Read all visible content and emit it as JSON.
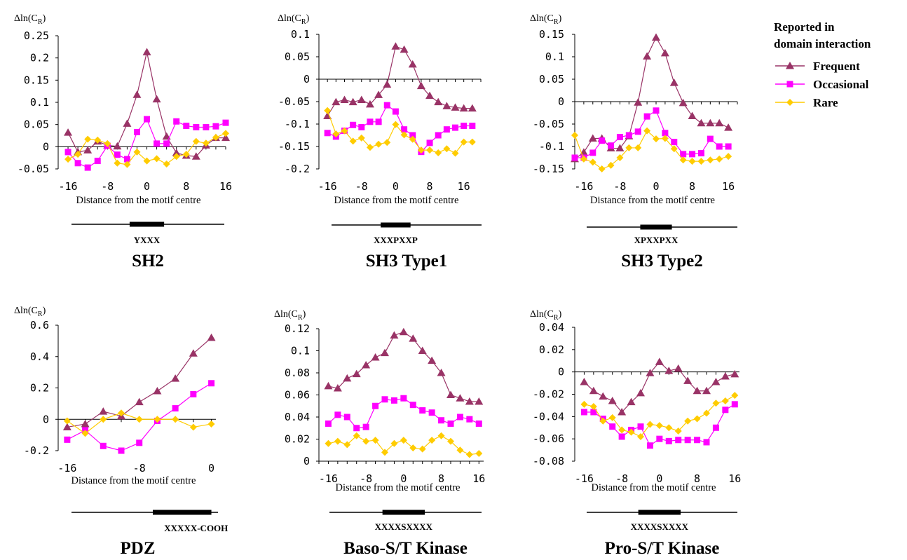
{
  "legend": {
    "title_line1": "Reported in",
    "title_line2": "domain interaction",
    "entries": [
      {
        "label": "Frequent",
        "color": "#993366",
        "marker": "triangle"
      },
      {
        "label": "Occasional",
        "color": "#ff00ff",
        "marker": "square"
      },
      {
        "label": "Rare",
        "color": "#ffcc00",
        "marker": "diamond"
      }
    ]
  },
  "chart_data": [
    {
      "type": "line",
      "title": "SH2",
      "motif": "YXXX",
      "ylabel_prefix": "Δln(C",
      "ylabel_sub": "R",
      "ylabel_suffix": ")",
      "xlabel": "Distance from the motif centre",
      "ylim": [
        -0.05,
        0.25
      ],
      "yticks": [
        "0.25",
        "0.2",
        "0.15",
        "0.1",
        "0.05",
        "0",
        "-0.05"
      ],
      "xlim": [
        -18,
        16
      ],
      "xticks": [
        -16,
        -8,
        0,
        8,
        16
      ],
      "zero_axis": 0,
      "x": [
        -16,
        -14,
        -12,
        -10,
        -8,
        -6,
        -4,
        -2,
        0,
        2,
        4,
        6,
        8,
        10,
        12,
        14,
        16
      ],
      "series": [
        {
          "name": "Frequent",
          "values": [
            0.032,
            -0.012,
            -0.008,
            0.012,
            0.003,
            0.001,
            0.052,
            0.117,
            0.213,
            0.107,
            0.023,
            -0.014,
            -0.02,
            -0.022,
            0.003,
            0.02,
            0.02
          ]
        },
        {
          "name": "Occasional",
          "values": [
            -0.012,
            -0.037,
            -0.047,
            -0.032,
            0.002,
            -0.018,
            -0.028,
            0.033,
            0.062,
            0.007,
            0.007,
            0.057,
            0.047,
            0.044,
            0.044,
            0.046,
            0.054
          ]
        },
        {
          "name": "Rare",
          "values": [
            -0.028,
            -0.017,
            0.017,
            0.015,
            0.007,
            -0.037,
            -0.04,
            -0.012,
            -0.032,
            -0.027,
            -0.039,
            -0.022,
            -0.017,
            0.012,
            0.008,
            0.021,
            0.03
          ]
        }
      ],
      "motif_bar": [
        -3.5,
        3.5
      ]
    },
    {
      "type": "line",
      "title": "SH3  Type1",
      "motif": "XXXPXXP",
      "ylabel_prefix": "Δln(C",
      "ylabel_sub": "R",
      "ylabel_suffix": ")",
      "xlabel": "Distance from the motif centre",
      "ylim": [
        -0.2,
        0.1
      ],
      "yticks": [
        "0.1",
        "0.05",
        "0",
        "-0.05",
        "-0.1",
        "-0.15",
        "-0.2"
      ],
      "xlim": [
        -18,
        20
      ],
      "xticks": [
        -16,
        -8,
        0,
        8,
        16
      ],
      "zero_axis": 0,
      "x": [
        -16,
        -14,
        -12,
        -10,
        -8,
        -6,
        -4,
        -2,
        0,
        2,
        4,
        6,
        8,
        10,
        12,
        14,
        16,
        18
      ],
      "series": [
        {
          "name": "Frequent",
          "values": [
            -0.082,
            -0.051,
            -0.046,
            -0.051,
            -0.046,
            -0.056,
            -0.035,
            -0.012,
            0.073,
            0.066,
            0.033,
            -0.015,
            -0.037,
            -0.051,
            -0.06,
            -0.063,
            -0.065,
            -0.065
          ]
        },
        {
          "name": "Occasional",
          "values": [
            -0.12,
            -0.128,
            -0.115,
            -0.102,
            -0.107,
            -0.095,
            -0.095,
            -0.058,
            -0.072,
            -0.112,
            -0.125,
            -0.162,
            -0.142,
            -0.125,
            -0.112,
            -0.108,
            -0.104,
            -0.104
          ]
        },
        {
          "name": "Rare",
          "values": [
            -0.07,
            -0.122,
            -0.115,
            -0.138,
            -0.131,
            -0.152,
            -0.145,
            -0.141,
            -0.101,
            -0.124,
            -0.134,
            -0.158,
            -0.158,
            -0.164,
            -0.155,
            -0.165,
            -0.14,
            -0.14
          ]
        }
      ],
      "motif_bar": [
        -3.5,
        3.5
      ]
    },
    {
      "type": "line",
      "title": "SH3  Type2",
      "motif": "XPXXPXX",
      "ylabel_prefix": "Δln(C",
      "ylabel_sub": "R",
      "ylabel_suffix": ")",
      "xlabel": "Distance from the motif centre",
      "ylim": [
        -0.15,
        0.15
      ],
      "yticks": [
        "0.15",
        "0.1",
        "0.05",
        "0",
        "-0.05",
        "-0.1",
        "-0.15"
      ],
      "xlim": [
        -18,
        18
      ],
      "xticks": [
        -16,
        -8,
        0,
        8,
        16
      ],
      "zero_axis": 0,
      "x": [
        -18,
        -16,
        -14,
        -12,
        -10,
        -8,
        -6,
        -4,
        -2,
        0,
        2,
        4,
        6,
        8,
        10,
        12,
        14,
        16
      ],
      "series": [
        {
          "name": "Frequent",
          "values": [
            -0.128,
            -0.113,
            -0.082,
            -0.082,
            -0.104,
            -0.104,
            -0.077,
            -0.002,
            0.101,
            0.143,
            0.108,
            0.042,
            -0.003,
            -0.032,
            -0.048,
            -0.048,
            -0.048,
            -0.058
          ]
        },
        {
          "name": "Occasional",
          "values": [
            -0.125,
            -0.125,
            -0.114,
            -0.087,
            -0.098,
            -0.079,
            -0.075,
            -0.067,
            -0.033,
            -0.02,
            -0.07,
            -0.09,
            -0.117,
            -0.117,
            -0.115,
            -0.083,
            -0.1,
            -0.1
          ]
        },
        {
          "name": "Rare",
          "values": [
            -0.075,
            -0.128,
            -0.135,
            -0.15,
            -0.142,
            -0.125,
            -0.103,
            -0.103,
            -0.065,
            -0.083,
            -0.082,
            -0.105,
            -0.13,
            -0.133,
            -0.133,
            -0.13,
            -0.128,
            -0.122
          ]
        }
      ],
      "motif_bar": [
        -3.5,
        3.5
      ]
    },
    {
      "type": "line",
      "title": "PDZ",
      "motif": "XXXXX-COOH",
      "ylabel_prefix": "Δln(C",
      "ylabel_sub": "R",
      "ylabel_suffix": ")",
      "xlabel": "Distance from the motif centre",
      "ylim": [
        -0.2,
        0.6
      ],
      "yticks": [
        "0.6",
        "0.4",
        "0.2",
        "0",
        "-0.2"
      ],
      "xlim": [
        -17,
        0.5
      ],
      "xticks": [
        -16,
        -8,
        0
      ],
      "zero_axis": 0,
      "x": [
        -16,
        -14,
        -12,
        -10,
        -8,
        -6,
        -4,
        -2,
        0
      ],
      "series": [
        {
          "name": "Frequent",
          "values": [
            -0.05,
            -0.03,
            0.05,
            0.02,
            0.11,
            0.18,
            0.26,
            0.42,
            0.52
          ]
        },
        {
          "name": "Occasional",
          "values": [
            -0.13,
            -0.07,
            -0.17,
            -0.2,
            -0.15,
            -0.01,
            0.07,
            0.16,
            0.23
          ]
        },
        {
          "name": "Rare",
          "values": [
            -0.01,
            -0.09,
            0.0,
            0.04,
            0.0,
            0.0,
            0.0,
            -0.05,
            -0.03
          ]
        }
      ],
      "motif_bar": [
        -6.5,
        0
      ]
    },
    {
      "type": "line",
      "title": "Baso-S/T Kinase",
      "motif": "XXXXSXXXX",
      "ylabel_prefix": "Δln(C",
      "ylabel_sub": "R",
      "ylabel_suffix": ")",
      "xlabel": "Distance from the motif centre",
      "ylim": [
        0,
        0.12
      ],
      "yticks": [
        "0.12",
        "0.1",
        "0.08",
        "0.06",
        "0.04",
        "0.02",
        "0"
      ],
      "xlim": [
        -18,
        17
      ],
      "xticks": [
        -16,
        -8,
        0,
        8,
        16
      ],
      "zero_axis": null,
      "x": [
        -16,
        -14,
        -12,
        -10,
        -8,
        -6,
        -4,
        -2,
        0,
        2,
        4,
        6,
        8,
        10,
        12,
        14,
        16
      ],
      "series": [
        {
          "name": "Frequent",
          "values": [
            0.068,
            0.066,
            0.075,
            0.079,
            0.087,
            0.094,
            0.098,
            0.114,
            0.117,
            0.111,
            0.1,
            0.091,
            0.08,
            0.06,
            0.057,
            0.054,
            0.054
          ]
        },
        {
          "name": "Occasional",
          "values": [
            0.034,
            0.042,
            0.04,
            0.03,
            0.031,
            0.05,
            0.056,
            0.055,
            0.057,
            0.051,
            0.046,
            0.044,
            0.037,
            0.034,
            0.04,
            0.038,
            0.034
          ]
        },
        {
          "name": "Rare",
          "values": [
            0.016,
            0.018,
            0.015,
            0.023,
            0.018,
            0.019,
            0.008,
            0.016,
            0.019,
            0.012,
            0.011,
            0.019,
            0.023,
            0.018,
            0.01,
            0.006,
            0.007
          ]
        }
      ],
      "motif_bar": [
        -4.5,
        4.5
      ]
    },
    {
      "type": "line",
      "title": "Pro-S/T Kinase",
      "motif": "XXXXSXXXX",
      "ylabel_prefix": "Δln(C",
      "ylabel_sub": "R",
      "ylabel_suffix": ")",
      "xlabel": "Distance from the motif centre",
      "ylim": [
        -0.08,
        0.04
      ],
      "yticks": [
        "0.04",
        "0.02",
        "0",
        "-0.02",
        "-0.04",
        "-0.06",
        "-0.08"
      ],
      "xlim": [
        -18,
        17
      ],
      "xticks": [
        -16,
        -8,
        0,
        8,
        16
      ],
      "zero_axis": 0,
      "x": [
        -16,
        -14,
        -12,
        -10,
        -8,
        -6,
        -4,
        -2,
        0,
        2,
        4,
        6,
        8,
        10,
        12,
        14,
        16
      ],
      "series": [
        {
          "name": "Frequent",
          "values": [
            -0.009,
            -0.017,
            -0.022,
            -0.026,
            -0.036,
            -0.027,
            -0.019,
            -0.001,
            0.009,
            0.001,
            0.003,
            -0.008,
            -0.017,
            -0.017,
            -0.009,
            -0.004,
            -0.002
          ]
        },
        {
          "name": "Occasional",
          "values": [
            -0.036,
            -0.036,
            -0.042,
            -0.049,
            -0.058,
            -0.052,
            -0.049,
            -0.066,
            -0.06,
            -0.062,
            -0.061,
            -0.061,
            -0.061,
            -0.063,
            -0.05,
            -0.034,
            -0.029
          ]
        },
        {
          "name": "Rare",
          "values": [
            -0.029,
            -0.031,
            -0.044,
            -0.041,
            -0.052,
            -0.054,
            -0.058,
            -0.047,
            -0.048,
            -0.05,
            -0.053,
            -0.044,
            -0.042,
            -0.037,
            -0.028,
            -0.026,
            -0.021
          ]
        }
      ],
      "motif_bar": [
        -4.5,
        4.5
      ]
    }
  ]
}
